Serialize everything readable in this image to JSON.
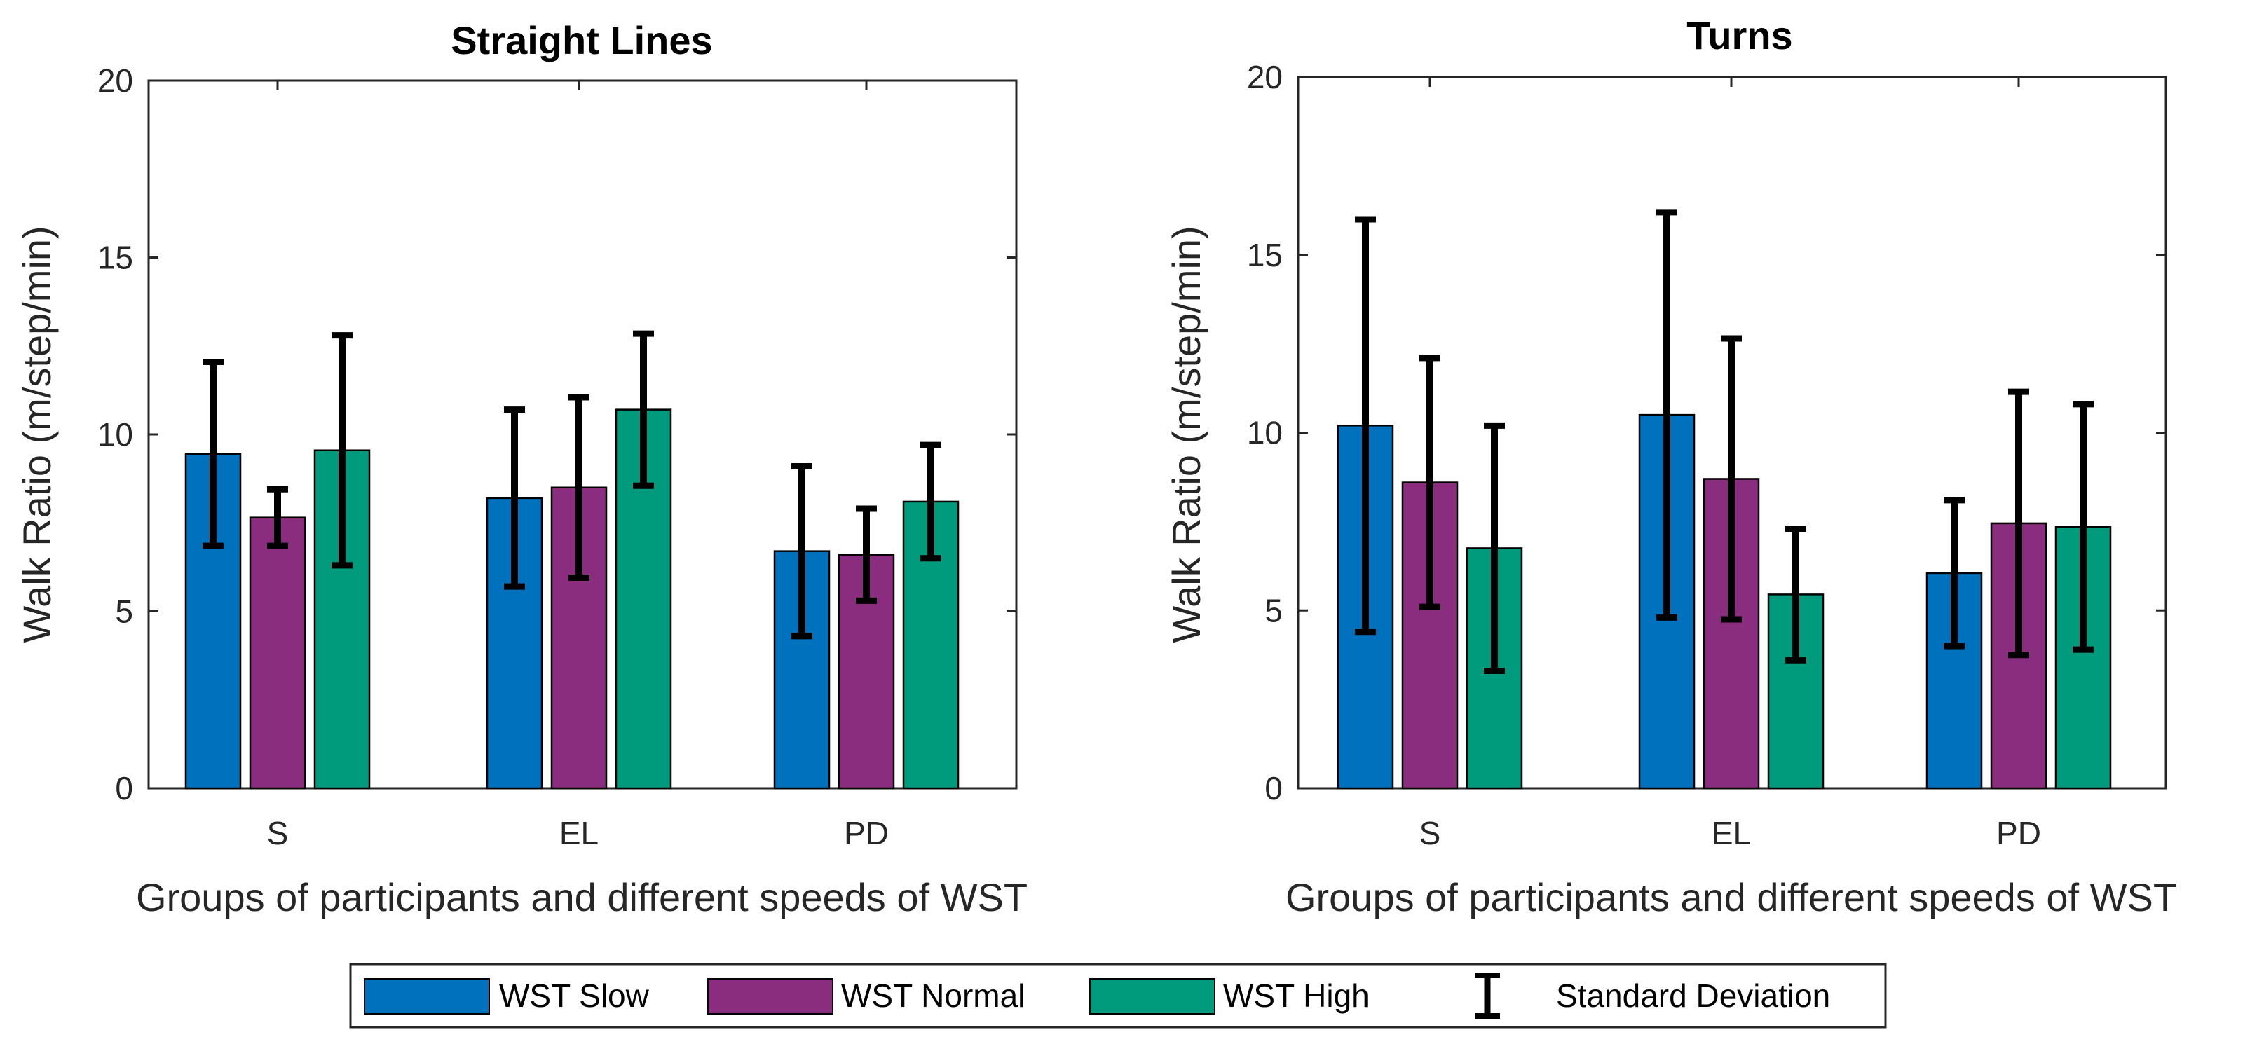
{
  "chart_data": [
    {
      "type": "bar",
      "title": "Straight Lines",
      "categories": [
        "S",
        "EL",
        "PD"
      ],
      "xlabel": "Groups of participants and different speeds of WST",
      "ylabel": "Walk Ratio (m/step/min)",
      "ylim": [
        0,
        20
      ],
      "yticks": [
        0,
        5,
        10,
        15,
        20
      ],
      "grid": false,
      "series": [
        {
          "name": "WST Slow",
          "values": [
            9.45,
            8.2,
            6.7
          ],
          "sd": [
            2.6,
            2.5,
            2.4
          ]
        },
        {
          "name": "WST Normal",
          "values": [
            7.65,
            8.5,
            6.6
          ],
          "sd": [
            0.8,
            2.55,
            1.3
          ]
        },
        {
          "name": "WST High",
          "values": [
            9.55,
            10.7,
            8.1
          ],
          "sd": [
            3.25,
            2.15,
            1.6
          ]
        }
      ]
    },
    {
      "type": "bar",
      "title": "Turns",
      "categories": [
        "S",
        "EL",
        "PD"
      ],
      "xlabel": "Groups of participants and different speeds of WST",
      "ylabel": "Walk Ratio (m/step/min)",
      "ylim": [
        0,
        20
      ],
      "yticks": [
        0,
        5,
        10,
        15,
        20
      ],
      "grid": false,
      "series": [
        {
          "name": "WST Slow",
          "values": [
            10.2,
            10.5,
            6.05
          ],
          "sd": [
            5.8,
            5.7,
            2.05
          ]
        },
        {
          "name": "WST Normal",
          "values": [
            8.6,
            8.7,
            7.45
          ],
          "sd": [
            3.5,
            3.95,
            3.7
          ]
        },
        {
          "name": "WST High",
          "values": [
            6.75,
            5.45,
            7.35
          ],
          "sd": [
            3.45,
            1.85,
            3.45
          ]
        }
      ]
    }
  ],
  "legend": {
    "placement": "bottom-center",
    "items": [
      "WST Slow",
      "WST Normal",
      "WST High",
      "Standard Deviation"
    ]
  },
  "colors": {
    "slow": "#0072BD",
    "normal": "#8B2D7F",
    "high": "#009B7D",
    "error": "#000000",
    "axis": "#262626"
  }
}
